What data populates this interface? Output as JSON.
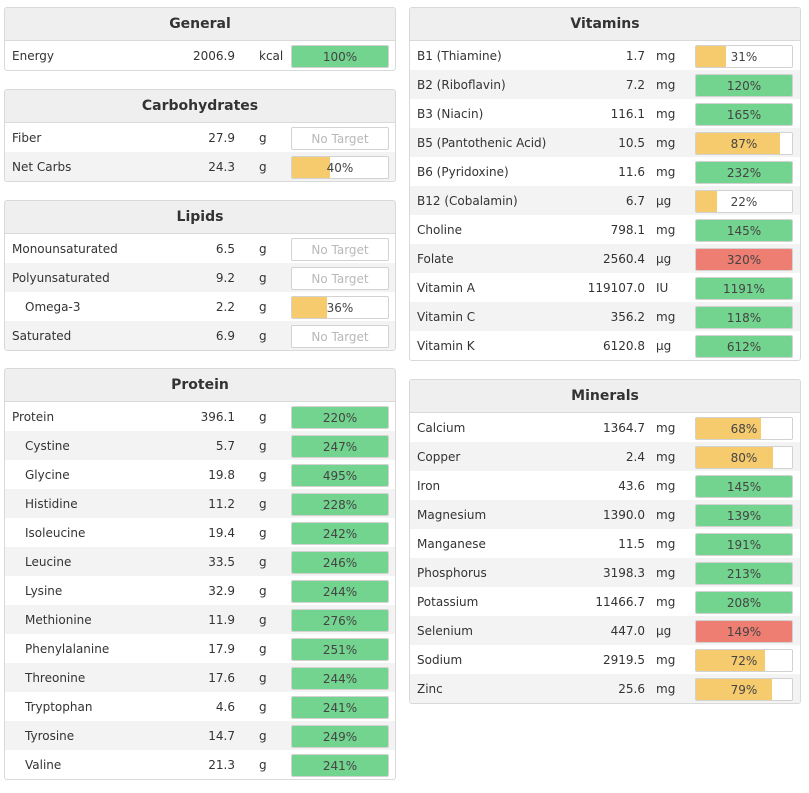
{
  "colors": {
    "green": "#72d48e",
    "yellow": "#f6cb6d",
    "red": "#ee7d72"
  },
  "general": {
    "title": "General",
    "rows": [
      {
        "name": "Energy",
        "amount": "2006.9",
        "unit": "kcal",
        "percent": "100%",
        "fill": 100,
        "status": "green",
        "indent": false
      }
    ]
  },
  "carbohydrates": {
    "title": "Carbohydrates",
    "rows": [
      {
        "name": "Fiber",
        "amount": "27.9",
        "unit": "g",
        "percent": "No Target",
        "fill": 0,
        "status": "none",
        "indent": false
      },
      {
        "name": "Net Carbs",
        "amount": "24.3",
        "unit": "g",
        "percent": "40%",
        "fill": 40,
        "status": "yellow",
        "indent": false
      }
    ]
  },
  "lipids": {
    "title": "Lipids",
    "rows": [
      {
        "name": "Monounsaturated",
        "amount": "6.5",
        "unit": "g",
        "percent": "No Target",
        "fill": 0,
        "status": "none",
        "indent": false
      },
      {
        "name": "Polyunsaturated",
        "amount": "9.2",
        "unit": "g",
        "percent": "No Target",
        "fill": 0,
        "status": "none",
        "indent": false
      },
      {
        "name": "Omega-3",
        "amount": "2.2",
        "unit": "g",
        "percent": "36%",
        "fill": 36,
        "status": "yellow",
        "indent": true
      },
      {
        "name": "Saturated",
        "amount": "6.9",
        "unit": "g",
        "percent": "No Target",
        "fill": 0,
        "status": "none",
        "indent": false
      }
    ]
  },
  "protein": {
    "title": "Protein",
    "rows": [
      {
        "name": "Protein",
        "amount": "396.1",
        "unit": "g",
        "percent": "220%",
        "fill": 100,
        "status": "green",
        "indent": false
      },
      {
        "name": "Cystine",
        "amount": "5.7",
        "unit": "g",
        "percent": "247%",
        "fill": 100,
        "status": "green",
        "indent": true
      },
      {
        "name": "Glycine",
        "amount": "19.8",
        "unit": "g",
        "percent": "495%",
        "fill": 100,
        "status": "green",
        "indent": true
      },
      {
        "name": "Histidine",
        "amount": "11.2",
        "unit": "g",
        "percent": "228%",
        "fill": 100,
        "status": "green",
        "indent": true
      },
      {
        "name": "Isoleucine",
        "amount": "19.4",
        "unit": "g",
        "percent": "242%",
        "fill": 100,
        "status": "green",
        "indent": true
      },
      {
        "name": "Leucine",
        "amount": "33.5",
        "unit": "g",
        "percent": "246%",
        "fill": 100,
        "status": "green",
        "indent": true
      },
      {
        "name": "Lysine",
        "amount": "32.9",
        "unit": "g",
        "percent": "244%",
        "fill": 100,
        "status": "green",
        "indent": true
      },
      {
        "name": "Methionine",
        "amount": "11.9",
        "unit": "g",
        "percent": "276%",
        "fill": 100,
        "status": "green",
        "indent": true
      },
      {
        "name": "Phenylalanine",
        "amount": "17.9",
        "unit": "g",
        "percent": "251%",
        "fill": 100,
        "status": "green",
        "indent": true
      },
      {
        "name": "Threonine",
        "amount": "17.6",
        "unit": "g",
        "percent": "244%",
        "fill": 100,
        "status": "green",
        "indent": true
      },
      {
        "name": "Tryptophan",
        "amount": "4.6",
        "unit": "g",
        "percent": "241%",
        "fill": 100,
        "status": "green",
        "indent": true
      },
      {
        "name": "Tyrosine",
        "amount": "14.7",
        "unit": "g",
        "percent": "249%",
        "fill": 100,
        "status": "green",
        "indent": true
      },
      {
        "name": "Valine",
        "amount": "21.3",
        "unit": "g",
        "percent": "241%",
        "fill": 100,
        "status": "green",
        "indent": true
      }
    ]
  },
  "vitamins": {
    "title": "Vitamins",
    "rows": [
      {
        "name": "B1 (Thiamine)",
        "amount": "1.7",
        "unit": "mg",
        "percent": "31%",
        "fill": 31,
        "status": "yellow",
        "indent": false
      },
      {
        "name": "B2 (Riboflavin)",
        "amount": "7.2",
        "unit": "mg",
        "percent": "120%",
        "fill": 100,
        "status": "green",
        "indent": false
      },
      {
        "name": "B3 (Niacin)",
        "amount": "116.1",
        "unit": "mg",
        "percent": "165%",
        "fill": 100,
        "status": "green",
        "indent": false
      },
      {
        "name": "B5 (Pantothenic Acid)",
        "amount": "10.5",
        "unit": "mg",
        "percent": "87%",
        "fill": 87,
        "status": "yellow",
        "indent": false
      },
      {
        "name": "B6 (Pyridoxine)",
        "amount": "11.6",
        "unit": "mg",
        "percent": "232%",
        "fill": 100,
        "status": "green",
        "indent": false
      },
      {
        "name": "B12 (Cobalamin)",
        "amount": "6.7",
        "unit": "µg",
        "percent": "22%",
        "fill": 22,
        "status": "yellow",
        "indent": false
      },
      {
        "name": "Choline",
        "amount": "798.1",
        "unit": "mg",
        "percent": "145%",
        "fill": 100,
        "status": "green",
        "indent": false
      },
      {
        "name": "Folate",
        "amount": "2560.4",
        "unit": "µg",
        "percent": "320%",
        "fill": 100,
        "status": "red",
        "indent": false
      },
      {
        "name": "Vitamin A",
        "amount": "119107.0",
        "unit": "IU",
        "percent": "1191%",
        "fill": 100,
        "status": "green",
        "indent": false
      },
      {
        "name": "Vitamin C",
        "amount": "356.2",
        "unit": "mg",
        "percent": "118%",
        "fill": 100,
        "status": "green",
        "indent": false
      },
      {
        "name": "Vitamin K",
        "amount": "6120.8",
        "unit": "µg",
        "percent": "612%",
        "fill": 100,
        "status": "green",
        "indent": false
      }
    ]
  },
  "minerals": {
    "title": "Minerals",
    "rows": [
      {
        "name": "Calcium",
        "amount": "1364.7",
        "unit": "mg",
        "percent": "68%",
        "fill": 68,
        "status": "yellow",
        "indent": false
      },
      {
        "name": "Copper",
        "amount": "2.4",
        "unit": "mg",
        "percent": "80%",
        "fill": 80,
        "status": "yellow",
        "indent": false
      },
      {
        "name": "Iron",
        "amount": "43.6",
        "unit": "mg",
        "percent": "145%",
        "fill": 100,
        "status": "green",
        "indent": false
      },
      {
        "name": "Magnesium",
        "amount": "1390.0",
        "unit": "mg",
        "percent": "139%",
        "fill": 100,
        "status": "green",
        "indent": false
      },
      {
        "name": "Manganese",
        "amount": "11.5",
        "unit": "mg",
        "percent": "191%",
        "fill": 100,
        "status": "green",
        "indent": false
      },
      {
        "name": "Phosphorus",
        "amount": "3198.3",
        "unit": "mg",
        "percent": "213%",
        "fill": 100,
        "status": "green",
        "indent": false
      },
      {
        "name": "Potassium",
        "amount": "11466.7",
        "unit": "mg",
        "percent": "208%",
        "fill": 100,
        "status": "green",
        "indent": false
      },
      {
        "name": "Selenium",
        "amount": "447.0",
        "unit": "µg",
        "percent": "149%",
        "fill": 100,
        "status": "red",
        "indent": false
      },
      {
        "name": "Sodium",
        "amount": "2919.5",
        "unit": "mg",
        "percent": "72%",
        "fill": 72,
        "status": "yellow",
        "indent": false
      },
      {
        "name": "Zinc",
        "amount": "25.6",
        "unit": "mg",
        "percent": "79%",
        "fill": 79,
        "status": "yellow",
        "indent": false
      }
    ]
  }
}
